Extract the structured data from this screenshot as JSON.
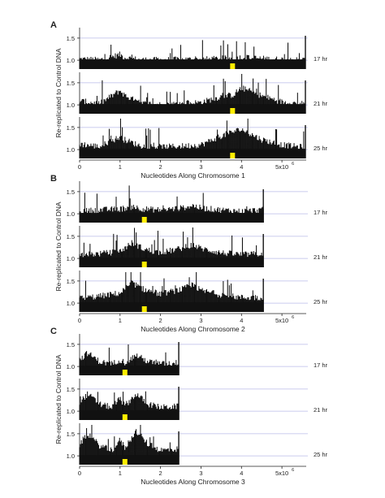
{
  "figure": {
    "panels": [
      {
        "letter": "A",
        "ylabel": "Re-replicated to Control DNA",
        "xlabel": "Nucleotides Along Chromosome 1",
        "x_tick_labels": [
          "0",
          "1",
          "2",
          "3",
          "4",
          "5x10"
        ],
        "x_exponent": "6",
        "y_tick_labels": [
          "1.5",
          "1.0"
        ],
        "tracks": [
          "17 hr",
          "21 hr",
          "25 hr"
        ]
      },
      {
        "letter": "B",
        "ylabel": "Re-replicated to Control DNA",
        "xlabel": "Nucleotides Along Chromosome 2",
        "x_tick_labels": [
          "0",
          "1",
          "2",
          "3",
          "4",
          "5x10"
        ],
        "x_exponent": "6",
        "y_tick_labels": [
          "1.5",
          "1.0"
        ],
        "tracks": [
          "17 hr",
          "21 hr",
          "25 hr"
        ]
      },
      {
        "letter": "C",
        "ylabel": "Re-replicated to Control DNA",
        "xlabel": "Nucleotides Along Chromosome 3",
        "x_tick_labels": [
          "0",
          "1",
          "2",
          "3",
          "4",
          "5x10"
        ],
        "x_exponent": "6",
        "y_tick_labels": [
          "1.5",
          "1.0"
        ],
        "tracks": [
          "17 hr",
          "21 hr",
          "25 hr"
        ]
      }
    ]
  },
  "colors": {
    "bars": "#111111",
    "gridline": "#b9bbe8",
    "marker": "#ffee00"
  },
  "chart_data": [
    {
      "type": "bar",
      "title": "",
      "panel": "A",
      "xlabel": "Nucleotides Along Chromosome 1",
      "ylabel": "Re-replicated to Control DNA",
      "x_unit_multiplier": 1000000,
      "xlim": [
        0,
        5.6
      ],
      "ylim": [
        0.8,
        1.7
      ],
      "chromosome_length_mb": 5.58,
      "marker_position_mb": 3.78,
      "grid": "horizontal reference lines at 1.0 and 1.5",
      "series": [
        {
          "name": "17 hr",
          "x": [
            0,
            0.5,
            1.0,
            1.1,
            1.5,
            2.0,
            2.5,
            3.0,
            3.5,
            3.8,
            4.0,
            4.5,
            5.0,
            5.5
          ],
          "values": [
            1.02,
            1.0,
            1.12,
            1.06,
            1.0,
            1.0,
            1.01,
            1.01,
            1.03,
            1.04,
            1.06,
            1.03,
            1.01,
            1.0
          ]
        },
        {
          "name": "21 hr",
          "x": [
            0,
            0.5,
            1.0,
            1.1,
            1.5,
            2.0,
            2.5,
            3.0,
            3.5,
            3.8,
            4.0,
            4.5,
            5.0,
            5.5
          ],
          "values": [
            1.08,
            1.02,
            1.32,
            1.22,
            1.03,
            1.0,
            1.02,
            1.05,
            1.18,
            1.22,
            1.38,
            1.2,
            1.06,
            1.02
          ]
        },
        {
          "name": "25 hr",
          "x": [
            0,
            0.5,
            1.0,
            1.1,
            1.5,
            2.0,
            2.5,
            3.0,
            3.5,
            3.8,
            4.0,
            4.5,
            5.0,
            5.5
          ],
          "values": [
            1.12,
            1.06,
            1.28,
            1.22,
            1.08,
            1.05,
            1.07,
            1.1,
            1.3,
            1.4,
            1.45,
            1.22,
            1.1,
            1.05
          ]
        }
      ]
    },
    {
      "type": "bar",
      "title": "",
      "panel": "B",
      "xlabel": "Nucleotides Along Chromosome 2",
      "ylabel": "Re-replicated to Control DNA",
      "x_unit_multiplier": 1000000,
      "xlim": [
        0,
        5.6
      ],
      "ylim": [
        0.8,
        1.7
      ],
      "chromosome_length_mb": 4.54,
      "marker_position_mb": 1.6,
      "grid": "horizontal reference lines at 1.0 and 1.5",
      "series": [
        {
          "name": "17 hr",
          "x": [
            0,
            0.5,
            1.0,
            1.3,
            1.6,
            2.0,
            2.5,
            2.8,
            3.0,
            3.5,
            4.0,
            4.5
          ],
          "values": [
            1.05,
            1.08,
            1.1,
            1.15,
            1.1,
            1.08,
            1.12,
            1.18,
            1.12,
            1.08,
            1.05,
            1.08
          ]
        },
        {
          "name": "21 hr",
          "x": [
            0,
            0.5,
            1.0,
            1.3,
            1.6,
            2.0,
            2.5,
            2.8,
            3.0,
            3.5,
            4.0,
            4.5
          ],
          "values": [
            1.08,
            1.1,
            1.15,
            1.35,
            1.2,
            1.12,
            1.22,
            1.3,
            1.22,
            1.12,
            1.08,
            1.1
          ]
        },
        {
          "name": "25 hr",
          "x": [
            0,
            0.5,
            1.0,
            1.3,
            1.6,
            2.0,
            2.5,
            2.8,
            3.0,
            3.5,
            4.0,
            4.5
          ],
          "values": [
            1.1,
            1.15,
            1.22,
            1.45,
            1.3,
            1.2,
            1.3,
            1.4,
            1.28,
            1.18,
            1.12,
            1.12
          ]
        }
      ]
    },
    {
      "type": "bar",
      "title": "",
      "panel": "C",
      "xlabel": "Nucleotides Along Chromosome 3",
      "ylabel": "Re-replicated to Control DNA",
      "x_unit_multiplier": 1000000,
      "xlim": [
        0,
        5.6
      ],
      "ylim": [
        0.8,
        1.7
      ],
      "chromosome_length_mb": 2.45,
      "marker_position_mb": 1.12,
      "grid": "horizontal reference lines at 1.0 and 1.5",
      "series": [
        {
          "name": "17 hr",
          "x": [
            0,
            0.2,
            0.5,
            0.8,
            1.0,
            1.12,
            1.4,
            1.7,
            2.0,
            2.45
          ],
          "values": [
            1.15,
            1.3,
            1.1,
            1.05,
            1.15,
            1.08,
            1.25,
            1.1,
            1.05,
            1.08
          ]
        },
        {
          "name": "21 hr",
          "x": [
            0,
            0.2,
            0.5,
            0.8,
            1.0,
            1.12,
            1.4,
            1.7,
            2.0,
            2.45
          ],
          "values": [
            1.2,
            1.38,
            1.15,
            1.08,
            1.28,
            1.12,
            1.38,
            1.15,
            1.08,
            1.1
          ]
        },
        {
          "name": "25 hr",
          "x": [
            0,
            0.2,
            0.5,
            0.8,
            1.0,
            1.12,
            1.4,
            1.7,
            2.0,
            2.45
          ],
          "values": [
            1.25,
            1.5,
            1.22,
            1.12,
            1.35,
            1.18,
            1.55,
            1.25,
            1.12,
            1.15
          ]
        }
      ]
    }
  ]
}
